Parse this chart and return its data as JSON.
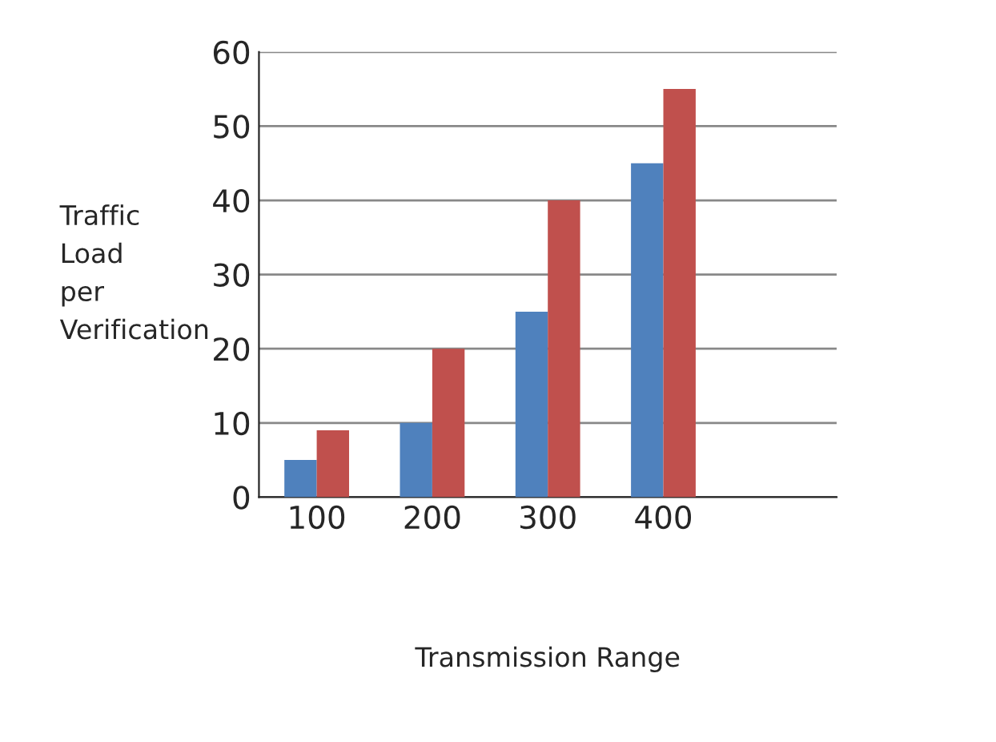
{
  "chart_data": {
    "type": "bar",
    "xlabel": "Transmission Range",
    "ylabel": "Traffic Load per Verification",
    "categories": [
      "100",
      "200",
      "300",
      "400",
      null
    ],
    "series": [
      {
        "color": "#4f81bd",
        "values": [
          5,
          10,
          25,
          45,
          null
        ]
      },
      {
        "color": "#c0504d",
        "values": [
          9,
          20,
          40,
          55,
          null
        ]
      }
    ],
    "ylim": [
      0,
      60
    ],
    "yticks": [
      0,
      10,
      20,
      30,
      40,
      50,
      60
    ],
    "grid": "y",
    "legend": false
  }
}
